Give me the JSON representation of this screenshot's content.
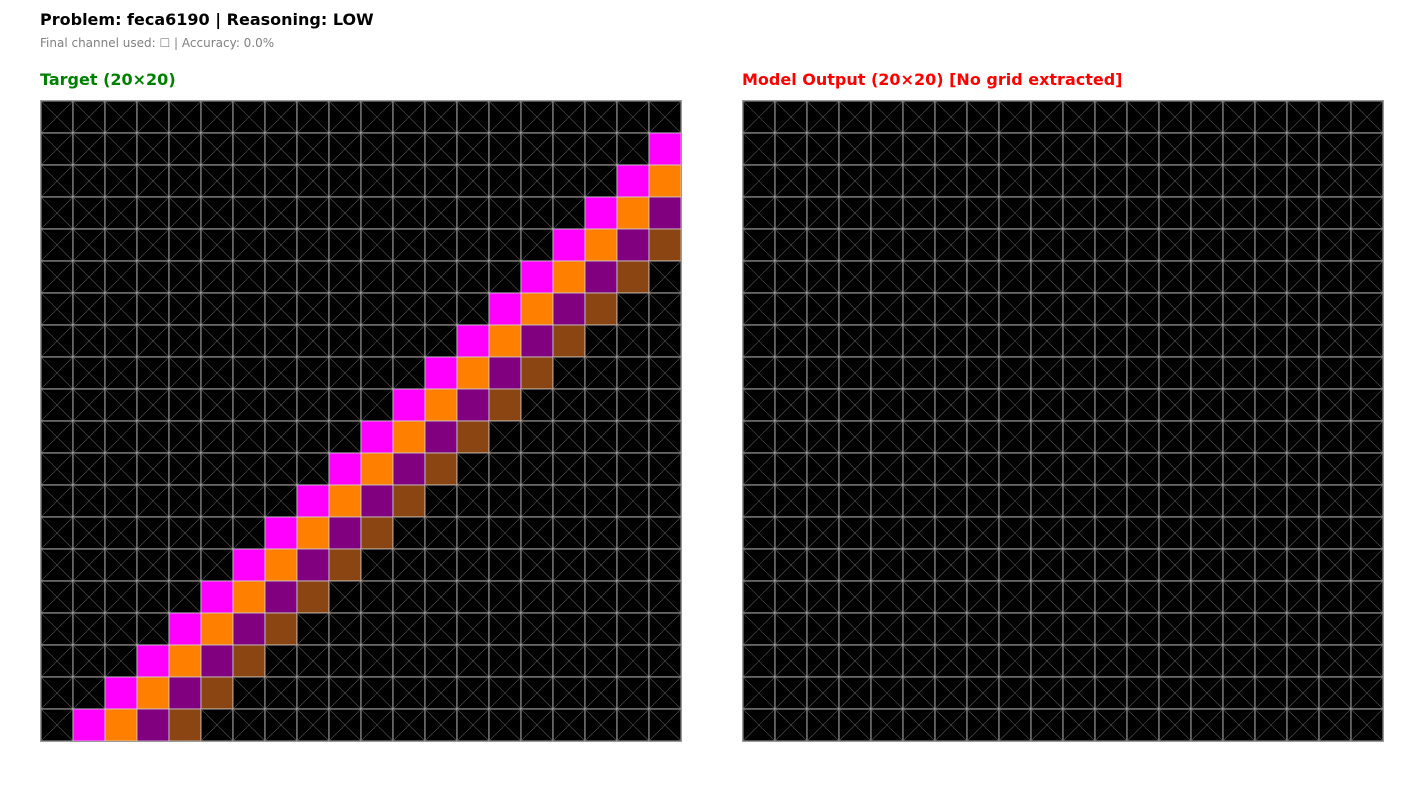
{
  "header": {
    "title": "Problem: feca6190 | Reasoning: LOW",
    "subtitle": "Final channel used: ☐ | Accuracy: 0.0%"
  },
  "target": {
    "title": "Target (20×20)",
    "title_color": "#008000",
    "rows": 20,
    "cols": 20,
    "pattern": "anti-diagonal bands: magenta, orange, purple, brown from bottom-left to top-right"
  },
  "output": {
    "title": "Model Output (20×20) [No grid extracted]",
    "title_color": "#ff0000",
    "rows": 20,
    "cols": 20,
    "state": "empty"
  },
  "colors": {
    "0": "#000000",
    "6": "#ff00ff",
    "7": "#ff8000",
    "8": "#800080",
    "9": "#8b4513",
    "gridline": "#d0d0d0",
    "cross": "#555555"
  }
}
